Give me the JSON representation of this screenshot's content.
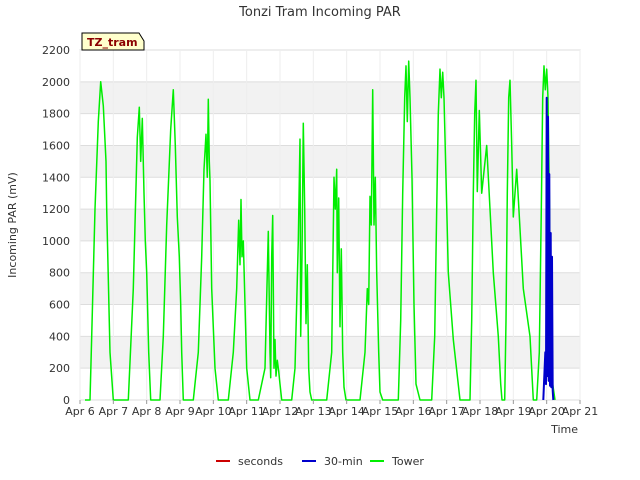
{
  "chart_data": {
    "type": "line",
    "title": "Tonzi Tram Incoming PAR",
    "xlabel": "Time",
    "ylabel": "Incoming PAR (mV)",
    "site_tag": "TZ_tram",
    "ylim": [
      0,
      2200
    ],
    "yticks": [
      0,
      200,
      400,
      600,
      800,
      1000,
      1200,
      1400,
      1600,
      1800,
      2000,
      2200
    ],
    "xlim": [
      6,
      21
    ],
    "xticks": [
      6,
      7,
      8,
      9,
      10,
      11,
      12,
      13,
      14,
      15,
      16,
      17,
      18,
      19,
      20,
      21
    ],
    "xtick_labels": [
      "Apr 6",
      "Apr 7",
      "Apr 8",
      "Apr 9",
      "Apr 10",
      "Apr 11",
      "Apr 12",
      "Apr 13",
      "Apr 14",
      "Apr 15",
      "Apr 16",
      "Apr 17",
      "Apr 18",
      "Apr 19",
      "Apr 20",
      "Apr 21"
    ],
    "grid": true,
    "legend_position": "bottom-center",
    "series": [
      {
        "name": "seconds",
        "color": "#cc0000",
        "x": [],
        "y": []
      },
      {
        "name": "30-min",
        "color": "#0000cc",
        "x": [
          19.9,
          19.96,
          19.98,
          20.0,
          20.02,
          20.04,
          20.06,
          20.08,
          20.1,
          20.12,
          20.14,
          20.16,
          20.18,
          20.2
        ],
        "y": [
          0,
          300,
          100,
          1900,
          150,
          1780,
          120,
          1420,
          90,
          1050,
          80,
          900,
          60,
          0
        ]
      },
      {
        "name": "Tower",
        "color": "#00ee00",
        "x": [
          6.15,
          6.3,
          6.35,
          6.45,
          6.55,
          6.62,
          6.7,
          6.78,
          6.8,
          6.9,
          7.0,
          7.05,
          7.2,
          7.3,
          7.45,
          7.6,
          7.72,
          7.78,
          7.82,
          7.87,
          7.92,
          7.96,
          8.0,
          8.06,
          8.12,
          8.2,
          8.3,
          8.4,
          8.5,
          8.6,
          8.72,
          8.8,
          8.86,
          8.92,
          8.98,
          9.02,
          9.05,
          9.1,
          9.2,
          9.4,
          9.55,
          9.65,
          9.72,
          9.78,
          9.82,
          9.85,
          9.88,
          9.9,
          9.95,
          10.05,
          10.15,
          10.3,
          10.45,
          10.6,
          10.7,
          10.76,
          10.8,
          10.83,
          10.86,
          10.9,
          10.95,
          11.0,
          11.1,
          11.2,
          11.35,
          11.55,
          11.65,
          11.7,
          11.72,
          11.75,
          11.78,
          11.82,
          11.85,
          11.88,
          11.92,
          11.96,
          12.0,
          12.05,
          12.2,
          12.35,
          12.45,
          12.55,
          12.6,
          12.62,
          12.66,
          12.7,
          12.74,
          12.78,
          12.82,
          12.86,
          12.9,
          12.95,
          13.05,
          13.2,
          13.4,
          13.55,
          13.62,
          13.66,
          13.7,
          13.72,
          13.76,
          13.8,
          13.84,
          13.88,
          13.92,
          13.98,
          14.05,
          14.2,
          14.4,
          14.55,
          14.62,
          14.66,
          14.7,
          14.74,
          14.78,
          14.82,
          14.86,
          14.9,
          14.96,
          15.0,
          15.08,
          15.2,
          15.4,
          15.55,
          15.62,
          15.68,
          15.74,
          15.78,
          15.82,
          15.86,
          15.9,
          15.96,
          16.02,
          16.08,
          16.2,
          16.4,
          16.55,
          16.64,
          16.7,
          16.75,
          16.8,
          16.84,
          16.88,
          16.92,
          16.98,
          17.05,
          17.2,
          17.4,
          17.55,
          17.64,
          17.7,
          17.75,
          17.8,
          17.84,
          17.88,
          17.92,
          17.98,
          18.05,
          18.2,
          18.4,
          18.55,
          18.62,
          18.66,
          18.7,
          18.74,
          18.78,
          18.82,
          18.86,
          18.9,
          18.95,
          19.0,
          19.1,
          19.3,
          19.5,
          19.6,
          19.7,
          19.78,
          19.84,
          19.88,
          19.92,
          19.96,
          20.0,
          20.04,
          20.08,
          20.12,
          20.18,
          20.25
        ],
        "y": [
          0,
          0,
          400,
          1200,
          1750,
          2000,
          1850,
          1500,
          1200,
          300,
          0,
          0,
          0,
          0,
          0,
          700,
          1650,
          1840,
          1500,
          1770,
          1300,
          1000,
          800,
          300,
          0,
          0,
          0,
          0,
          400,
          1100,
          1700,
          1950,
          1600,
          1150,
          900,
          600,
          300,
          0,
          0,
          0,
          300,
          900,
          1450,
          1670,
          1400,
          1890,
          1500,
          1380,
          700,
          200,
          0,
          0,
          0,
          300,
          700,
          1130,
          850,
          1260,
          900,
          1000,
          600,
          200,
          0,
          0,
          0,
          200,
          1060,
          300,
          140,
          900,
          1160,
          200,
          380,
          150,
          250,
          180,
          100,
          0,
          0,
          0,
          200,
          1000,
          1640,
          400,
          900,
          1740,
          1200,
          480,
          850,
          200,
          50,
          0,
          0,
          0,
          0,
          300,
          1400,
          1200,
          1450,
          800,
          1270,
          460,
          950,
          300,
          80,
          0,
          0,
          0,
          0,
          300,
          700,
          600,
          1280,
          1100,
          1950,
          1100,
          1400,
          800,
          300,
          50,
          0,
          0,
          0,
          0,
          500,
          1300,
          1900,
          2100,
          1750,
          2130,
          1900,
          1400,
          600,
          100,
          0,
          0,
          0,
          400,
          1200,
          1800,
          2080,
          1900,
          2060,
          1900,
          1400,
          800,
          380,
          0,
          0,
          0,
          0,
          500,
          1300,
          1800,
          2010,
          1310,
          1820,
          1300,
          1600,
          800,
          400,
          100,
          0,
          0,
          0,
          500,
          1300,
          1900,
          2010,
          1600,
          1150,
          1450,
          700,
          400,
          0,
          0,
          300,
          1200,
          1900,
          2100,
          1950,
          2080,
          1900,
          1300,
          600,
          100,
          0
        ]
      }
    ]
  }
}
